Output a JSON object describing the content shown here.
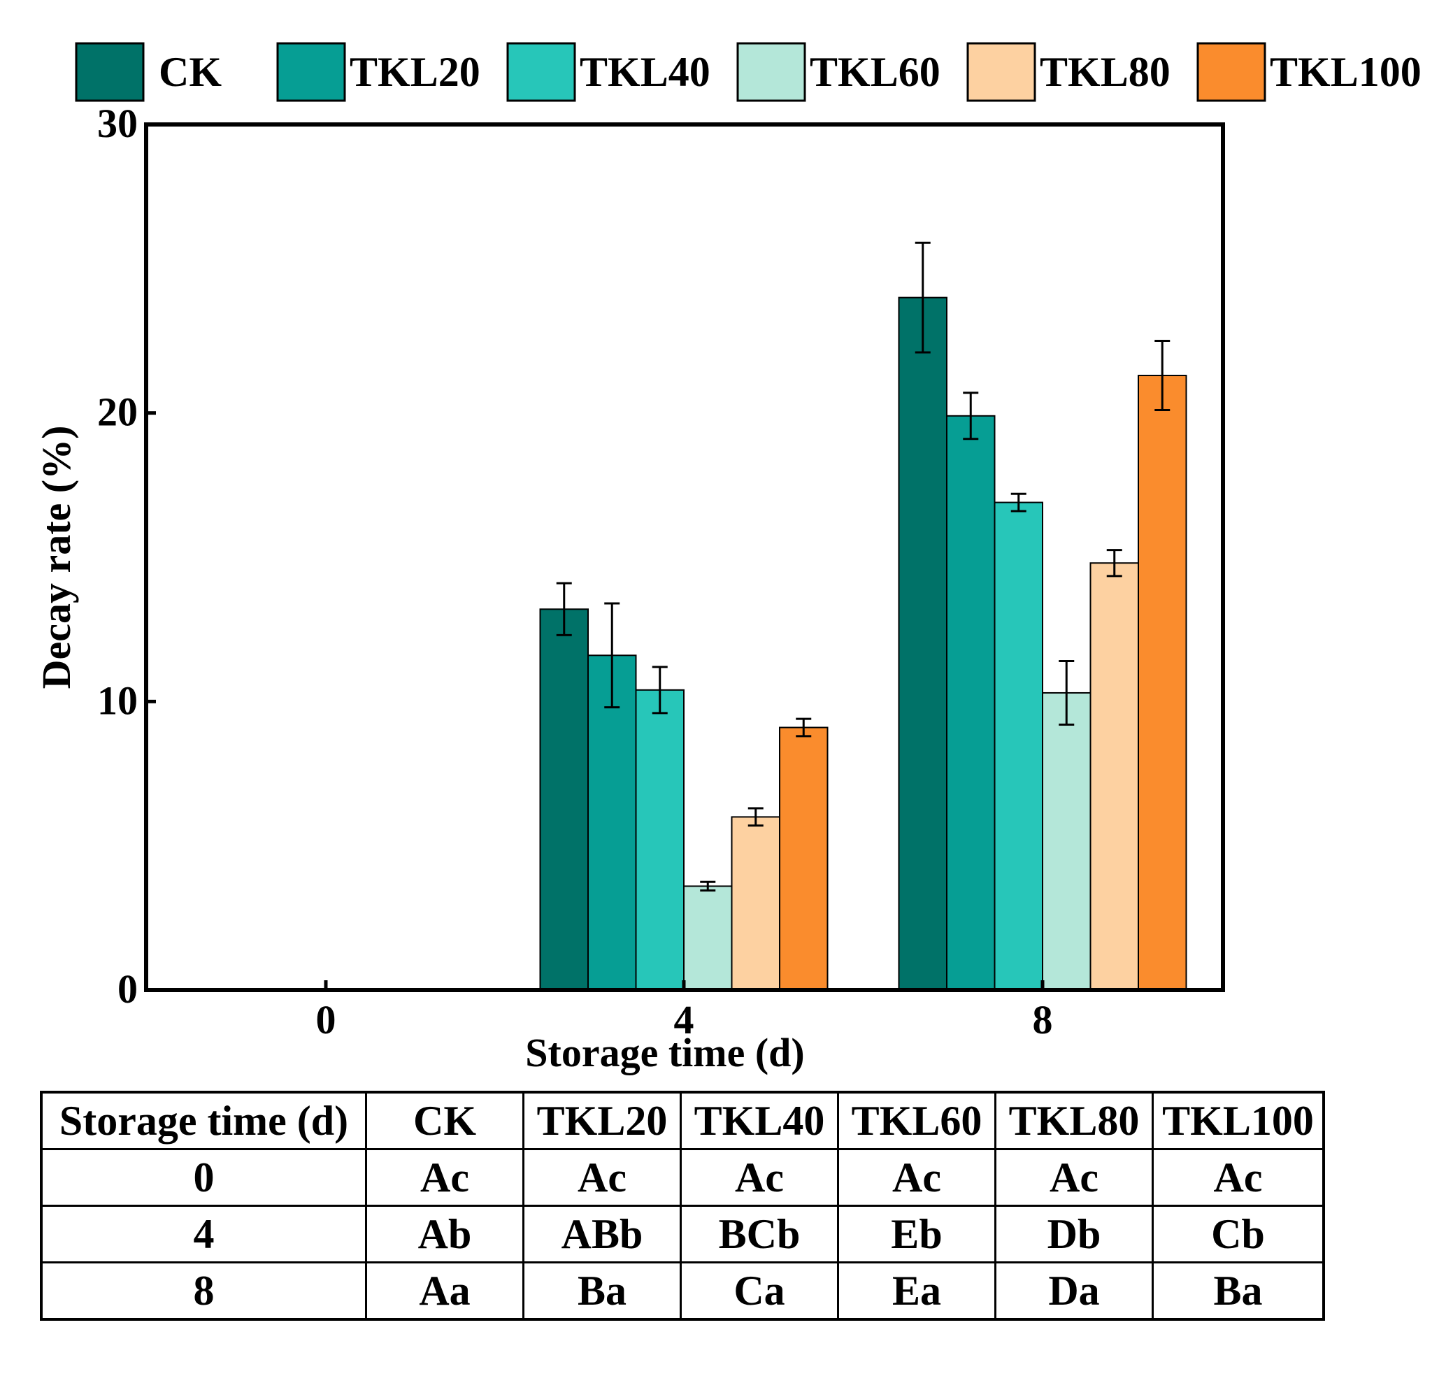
{
  "chart_data": {
    "type": "bar",
    "title": "",
    "xlabel": "Storage time (d)",
    "ylabel": "Decay rate (%)",
    "ylim": [
      0,
      30
    ],
    "yticks": [
      "0",
      "10",
      "20",
      "30"
    ],
    "categories": [
      "0",
      "4",
      "8"
    ],
    "series": [
      {
        "name": "CK",
        "color": "#007268",
        "values": [
          0,
          13.2,
          24.0
        ],
        "errors": [
          0,
          0.9,
          1.9
        ]
      },
      {
        "name": "TKL20",
        "color": "#069E94",
        "values": [
          0,
          11.6,
          19.9
        ],
        "errors": [
          0,
          1.8,
          0.8
        ]
      },
      {
        "name": "TKL40",
        "color": "#27C6B9",
        "values": [
          0,
          10.4,
          16.9
        ],
        "errors": [
          0,
          0.8,
          0.3
        ]
      },
      {
        "name": "TKL60",
        "color": "#B4E7D9",
        "values": [
          0,
          3.6,
          10.3
        ],
        "errors": [
          0,
          0.15,
          1.1
        ]
      },
      {
        "name": "TKL80",
        "color": "#FDD1A1",
        "values": [
          0,
          6.0,
          14.8
        ],
        "errors": [
          0,
          0.3,
          0.45
        ]
      },
      {
        "name": "TKL100",
        "color": "#FA8C2D",
        "values": [
          0,
          9.1,
          21.3
        ],
        "errors": [
          0,
          0.3,
          1.2
        ]
      }
    ],
    "legend_position": "top"
  },
  "table": {
    "headers": [
      "Storage time (d)",
      "CK",
      "TKL20",
      "TKL40",
      "TKL60",
      "TKL80",
      "TKL100"
    ],
    "rows": [
      [
        "0",
        "Ac",
        "Ac",
        "Ac",
        "Ac",
        "Ac",
        "Ac"
      ],
      [
        "4",
        "Ab",
        "ABb",
        "BCb",
        "Eb",
        "Db",
        "Cb"
      ],
      [
        "8",
        "Aa",
        "Ba",
        "Ca",
        "Ea",
        "Da",
        "Ba"
      ]
    ]
  }
}
